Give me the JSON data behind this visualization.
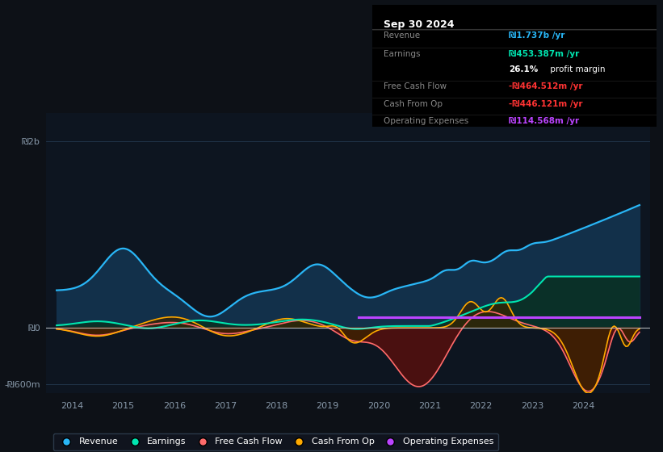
{
  "bg_color": "#0d1117",
  "plot_bg_color": "#0d1520",
  "grid_color": "#263d55",
  "zero_line_color": "#cccccc",
  "ylim": [
    -700,
    2300
  ],
  "yticks": [
    -600,
    0,
    2000
  ],
  "ytick_labels": [
    "-₪600m",
    "₪0",
    "₪2b"
  ],
  "xtick_positions": [
    2014,
    2015,
    2016,
    2017,
    2018,
    2019,
    2020,
    2021,
    2022,
    2023,
    2024
  ],
  "xtick_labels": [
    "2014",
    "2015",
    "2016",
    "2017",
    "2018",
    "2019",
    "2020",
    "2021",
    "2022",
    "2023",
    "2024"
  ],
  "xlim": [
    2013.5,
    2025.3
  ],
  "revenue_color": "#29b6f6",
  "revenue_fill": "#12304a",
  "earnings_color": "#00e5b0",
  "earnings_fill": "#0a3028",
  "fcf_color": "#ff6b6b",
  "fcf_fill": "#4a1010",
  "cashop_color": "#ffaa00",
  "cashop_fill": "#3a2400",
  "opex_color": "#bb44ff",
  "legend_labels": [
    "Revenue",
    "Earnings",
    "Free Cash Flow",
    "Cash From Op",
    "Operating Expenses"
  ],
  "legend_colors": [
    "#29b6f6",
    "#00e5b0",
    "#ff6b6b",
    "#ffaa00",
    "#bb44ff"
  ],
  "infobox": {
    "title": "Sep 30 2024",
    "rows": [
      {
        "label": "Revenue",
        "value": "₪1.737b /yr",
        "vcolor": "#29b6f6"
      },
      {
        "label": "Earnings",
        "value": "₪453.387m /yr",
        "vcolor": "#00e5b0"
      },
      {
        "label": "",
        "value": "26.1% profit margin",
        "vcolor": "#ffffff",
        "bold_prefix": "26.1%"
      },
      {
        "label": "Free Cash Flow",
        "value": "-₪464.512m /yr",
        "vcolor": "#ff3333"
      },
      {
        "label": "Cash From Op",
        "value": "-₪446.121m /yr",
        "vcolor": "#ff3333"
      },
      {
        "label": "Operating Expenses",
        "value": "₪114.568m /yr",
        "vcolor": "#bb44ff"
      }
    ]
  }
}
